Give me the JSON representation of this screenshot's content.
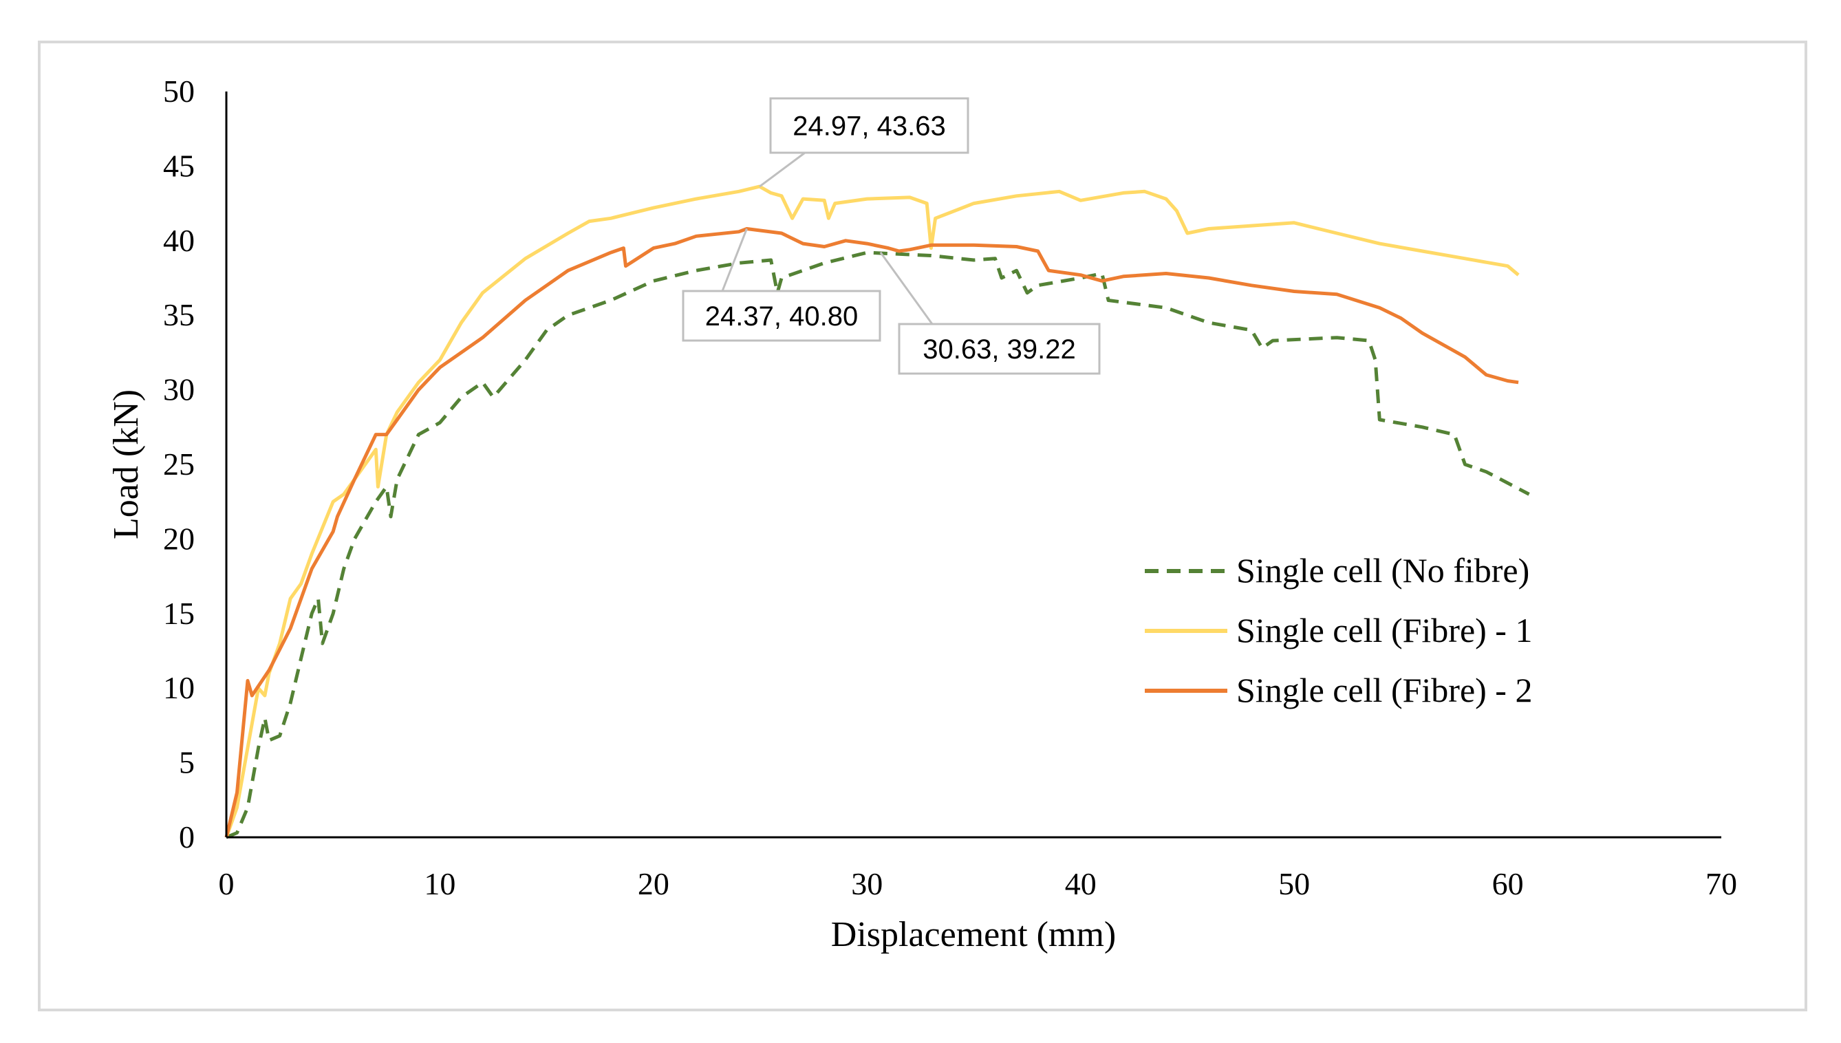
{
  "chart_data": {
    "type": "line",
    "title": "",
    "xlabel": "Displacement (mm)",
    "ylabel": "Load (kN)",
    "xlim": [
      0,
      70
    ],
    "ylim": [
      0,
      50
    ],
    "xticks": [
      "0",
      "10",
      "20",
      "30",
      "40",
      "50",
      "60",
      "70"
    ],
    "yticks": [
      "0",
      "5",
      "10",
      "15",
      "20",
      "25",
      "30",
      "35",
      "40",
      "45",
      "50"
    ],
    "grid": false,
    "legend_position": "right",
    "series": [
      {
        "name": "Single cell (No fibre)",
        "color": "#548235",
        "dash": true,
        "points": [
          [
            0,
            0
          ],
          [
            0.5,
            0.3
          ],
          [
            1,
            2
          ],
          [
            1.5,
            6
          ],
          [
            1.8,
            8
          ],
          [
            2,
            6.5
          ],
          [
            2.5,
            6.8
          ],
          [
            3,
            9
          ],
          [
            3.5,
            12
          ],
          [
            4,
            15
          ],
          [
            4.3,
            16
          ],
          [
            4.5,
            13
          ],
          [
            5,
            15
          ],
          [
            5.5,
            18
          ],
          [
            6,
            20
          ],
          [
            7,
            22.5
          ],
          [
            7.5,
            23.5
          ],
          [
            7.7,
            21.5
          ],
          [
            8,
            24
          ],
          [
            9,
            27
          ],
          [
            10,
            27.8
          ],
          [
            11,
            29.5
          ],
          [
            12,
            30.5
          ],
          [
            12.5,
            29.5
          ],
          [
            14,
            32
          ],
          [
            15,
            34
          ],
          [
            16,
            35
          ],
          [
            18,
            36
          ],
          [
            20,
            37.3
          ],
          [
            22,
            38
          ],
          [
            24,
            38.5
          ],
          [
            25.5,
            38.7
          ],
          [
            25.8,
            36.5
          ],
          [
            26,
            37.5
          ],
          [
            28,
            38.5
          ],
          [
            30,
            39.2
          ],
          [
            33,
            39
          ],
          [
            35,
            38.7
          ],
          [
            36,
            38.8
          ],
          [
            36.3,
            37.5
          ],
          [
            37,
            38
          ],
          [
            37.5,
            36.5
          ],
          [
            38,
            37
          ],
          [
            40,
            37.5
          ],
          [
            41,
            37.8
          ],
          [
            41.3,
            36
          ],
          [
            44,
            35.5
          ],
          [
            46,
            34.5
          ],
          [
            48,
            34
          ],
          [
            48.5,
            32.8
          ],
          [
            49,
            33.3
          ],
          [
            52,
            33.5
          ],
          [
            53.5,
            33.3
          ],
          [
            53.8,
            32
          ],
          [
            54,
            28
          ],
          [
            56,
            27.5
          ],
          [
            57.5,
            27
          ],
          [
            58,
            25
          ],
          [
            59,
            24.5
          ],
          [
            61,
            23
          ]
        ]
      },
      {
        "name": "Single cell (Fibre) - 1",
        "color": "#FFD966",
        "dash": false,
        "points": [
          [
            0,
            0
          ],
          [
            0.5,
            2
          ],
          [
            1,
            6
          ],
          [
            1.5,
            10
          ],
          [
            1.8,
            9.5
          ],
          [
            2,
            11
          ],
          [
            2.5,
            13
          ],
          [
            3,
            16
          ],
          [
            3.5,
            17
          ],
          [
            4,
            19
          ],
          [
            5,
            22.5
          ],
          [
            5.5,
            23
          ],
          [
            6,
            24
          ],
          [
            7,
            26
          ],
          [
            7.1,
            23.5
          ],
          [
            7.5,
            27
          ],
          [
            8,
            28.5
          ],
          [
            9,
            30.5
          ],
          [
            10,
            32
          ],
          [
            11,
            34.5
          ],
          [
            12,
            36.5
          ],
          [
            14,
            38.8
          ],
          [
            16,
            40.5
          ],
          [
            17,
            41.3
          ],
          [
            18,
            41.5
          ],
          [
            20,
            42.2
          ],
          [
            22,
            42.8
          ],
          [
            24,
            43.3
          ],
          [
            24.97,
            43.63
          ],
          [
            25.5,
            43.2
          ],
          [
            26,
            43
          ],
          [
            26.5,
            41.5
          ],
          [
            27,
            42.8
          ],
          [
            28,
            42.7
          ],
          [
            28.2,
            41.5
          ],
          [
            28.5,
            42.5
          ],
          [
            30,
            42.8
          ],
          [
            32,
            42.9
          ],
          [
            32.8,
            42.5
          ],
          [
            33,
            39.5
          ],
          [
            33.2,
            41.5
          ],
          [
            35,
            42.5
          ],
          [
            37,
            43
          ],
          [
            39,
            43.3
          ],
          [
            40,
            42.7
          ],
          [
            42,
            43.2
          ],
          [
            43,
            43.3
          ],
          [
            44,
            42.8
          ],
          [
            44.5,
            42
          ],
          [
            45,
            40.5
          ],
          [
            46,
            40.8
          ],
          [
            48,
            41
          ],
          [
            50,
            41.2
          ],
          [
            52,
            40.5
          ],
          [
            54,
            39.8
          ],
          [
            56,
            39.3
          ],
          [
            58,
            38.8
          ],
          [
            60,
            38.3
          ],
          [
            60.5,
            37.7
          ]
        ]
      },
      {
        "name": "Single cell (Fibre) - 2",
        "color": "#ED7D31",
        "dash": false,
        "points": [
          [
            0,
            0
          ],
          [
            0.5,
            3
          ],
          [
            1,
            10.5
          ],
          [
            1.2,
            9.5
          ],
          [
            2,
            11.2
          ],
          [
            3,
            14
          ],
          [
            4,
            18
          ],
          [
            4.8,
            20
          ],
          [
            5,
            20.5
          ],
          [
            5.2,
            21.5
          ],
          [
            6,
            24
          ],
          [
            7,
            27
          ],
          [
            7.5,
            27
          ],
          [
            8,
            28
          ],
          [
            9,
            30
          ],
          [
            10,
            31.5
          ],
          [
            12,
            33.5
          ],
          [
            14,
            36
          ],
          [
            16,
            38
          ],
          [
            18,
            39.2
          ],
          [
            18.6,
            39.5
          ],
          [
            18.7,
            38.3
          ],
          [
            20,
            39.5
          ],
          [
            21,
            39.8
          ],
          [
            22,
            40.3
          ],
          [
            24,
            40.6
          ],
          [
            24.37,
            40.8
          ],
          [
            26,
            40.5
          ],
          [
            27,
            39.8
          ],
          [
            28,
            39.6
          ],
          [
            29,
            40
          ],
          [
            30,
            39.8
          ],
          [
            31,
            39.5
          ],
          [
            31.5,
            39.3
          ],
          [
            32,
            39.4
          ],
          [
            33,
            39.7
          ],
          [
            35,
            39.7
          ],
          [
            37,
            39.6
          ],
          [
            38,
            39.3
          ],
          [
            38.5,
            38
          ],
          [
            40,
            37.7
          ],
          [
            41,
            37.3
          ],
          [
            42,
            37.6
          ],
          [
            44,
            37.8
          ],
          [
            46,
            37.5
          ],
          [
            48,
            37
          ],
          [
            50,
            36.6
          ],
          [
            52,
            36.4
          ],
          [
            54,
            35.5
          ],
          [
            55,
            34.8
          ],
          [
            56,
            33.8
          ],
          [
            58,
            32.2
          ],
          [
            59,
            31
          ],
          [
            60,
            30.6
          ],
          [
            60.5,
            30.5
          ]
        ]
      }
    ],
    "annotations": [
      {
        "text": "24.97, 43.63",
        "x": 24.97,
        "y": 43.63
      },
      {
        "text": "24.37, 40.80",
        "x": 24.37,
        "y": 40.8
      },
      {
        "text": "30.63, 39.22",
        "x": 30.63,
        "y": 39.22
      }
    ]
  }
}
